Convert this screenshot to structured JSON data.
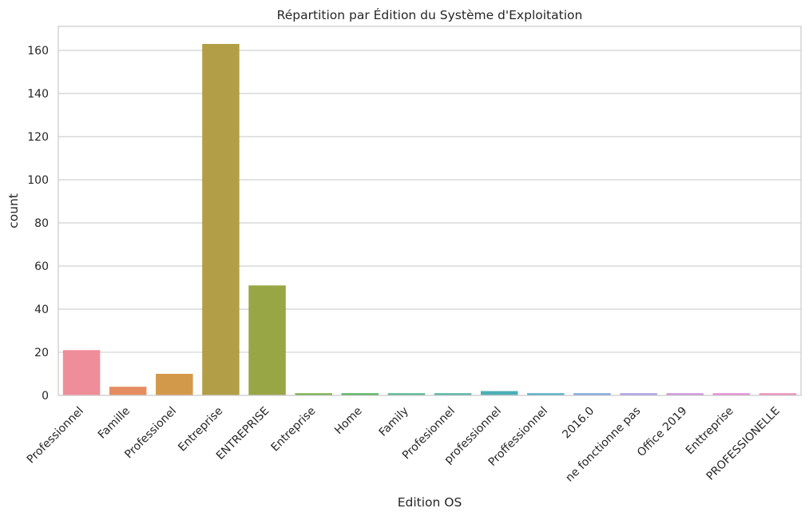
{
  "chart_data": {
    "type": "bar",
    "title": "Répartition par Édition du Système d'Exploitation",
    "xlabel": "Edition OS",
    "ylabel": "count",
    "categories": [
      "Professionnel",
      "Famille",
      "Professionel",
      "Entreprise",
      "ENTREPRISE",
      "Entreprise ",
      "Home",
      "Family",
      "Profesionnel",
      "professionnel",
      "Proffessionnel",
      "2016.0",
      "ne fonctionne pas",
      "Office 2019",
      "Enttreprise",
      "PROFESSIONELLE"
    ],
    "values": [
      21,
      4,
      10,
      163,
      51,
      1,
      1,
      1,
      1,
      2,
      1,
      1,
      1,
      1,
      1,
      1
    ],
    "colors": [
      "#f08d9a",
      "#e58c60",
      "#d3994a",
      "#b29e46",
      "#98a645",
      "#76ad47",
      "#50b15c",
      "#4fb38d",
      "#50b1a3",
      "#4caeb6",
      "#51abc7",
      "#79a5dc",
      "#a79be5",
      "#cd8fde",
      "#e487d3",
      "#ed8bb7"
    ],
    "ylim": [
      0,
      171.15
    ],
    "yticks": [
      "0",
      "20",
      "40",
      "60",
      "80",
      "100",
      "120",
      "140",
      "160"
    ],
    "grid": "y",
    "legend": "none"
  }
}
